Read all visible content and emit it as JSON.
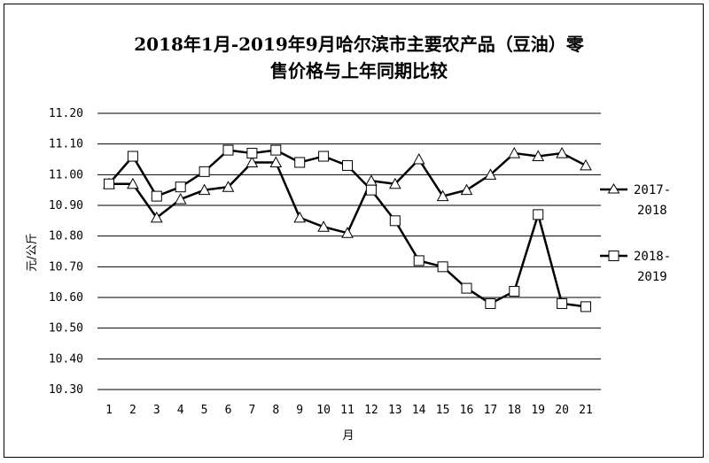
{
  "chart_data": {
    "type": "line",
    "title_line1": "2018年1月-2019年9月哈尔滨市主要农产品（豆油）零",
    "title_line2": "售价格与上年同期比较",
    "xlabel": "月",
    "ylabel": "元/公斤",
    "categories": [
      "1",
      "2",
      "3",
      "4",
      "5",
      "6",
      "7",
      "8",
      "9",
      "10",
      "11",
      "12",
      "13",
      "14",
      "15",
      "16",
      "17",
      "18",
      "19",
      "20",
      "21"
    ],
    "ylim": [
      10.3,
      11.2
    ],
    "yticks": [
      "10.30",
      "10.40",
      "10.50",
      "10.60",
      "10.70",
      "10.80",
      "10.90",
      "11.00",
      "11.10",
      "11.20"
    ],
    "grid": true,
    "legend_position": "right",
    "series": [
      {
        "name": "2017-2018",
        "marker": "triangle",
        "values": [
          10.97,
          10.97,
          10.86,
          10.92,
          10.95,
          10.96,
          11.04,
          11.04,
          10.86,
          10.83,
          10.81,
          10.98,
          10.97,
          11.05,
          10.93,
          10.95,
          11.0,
          11.07,
          11.06,
          11.07,
          11.03
        ]
      },
      {
        "name": "2018-2019",
        "marker": "square",
        "values": [
          10.97,
          11.06,
          10.93,
          10.96,
          11.01,
          11.08,
          11.07,
          11.08,
          11.04,
          11.06,
          11.03,
          10.95,
          10.85,
          10.72,
          10.7,
          10.63,
          10.58,
          10.62,
          10.87,
          10.58,
          10.57
        ]
      }
    ],
    "legend": {
      "s1_line1": "2017-",
      "s1_line2": "2018",
      "s2_line1": "2018-",
      "s2_line2": "2019"
    }
  }
}
